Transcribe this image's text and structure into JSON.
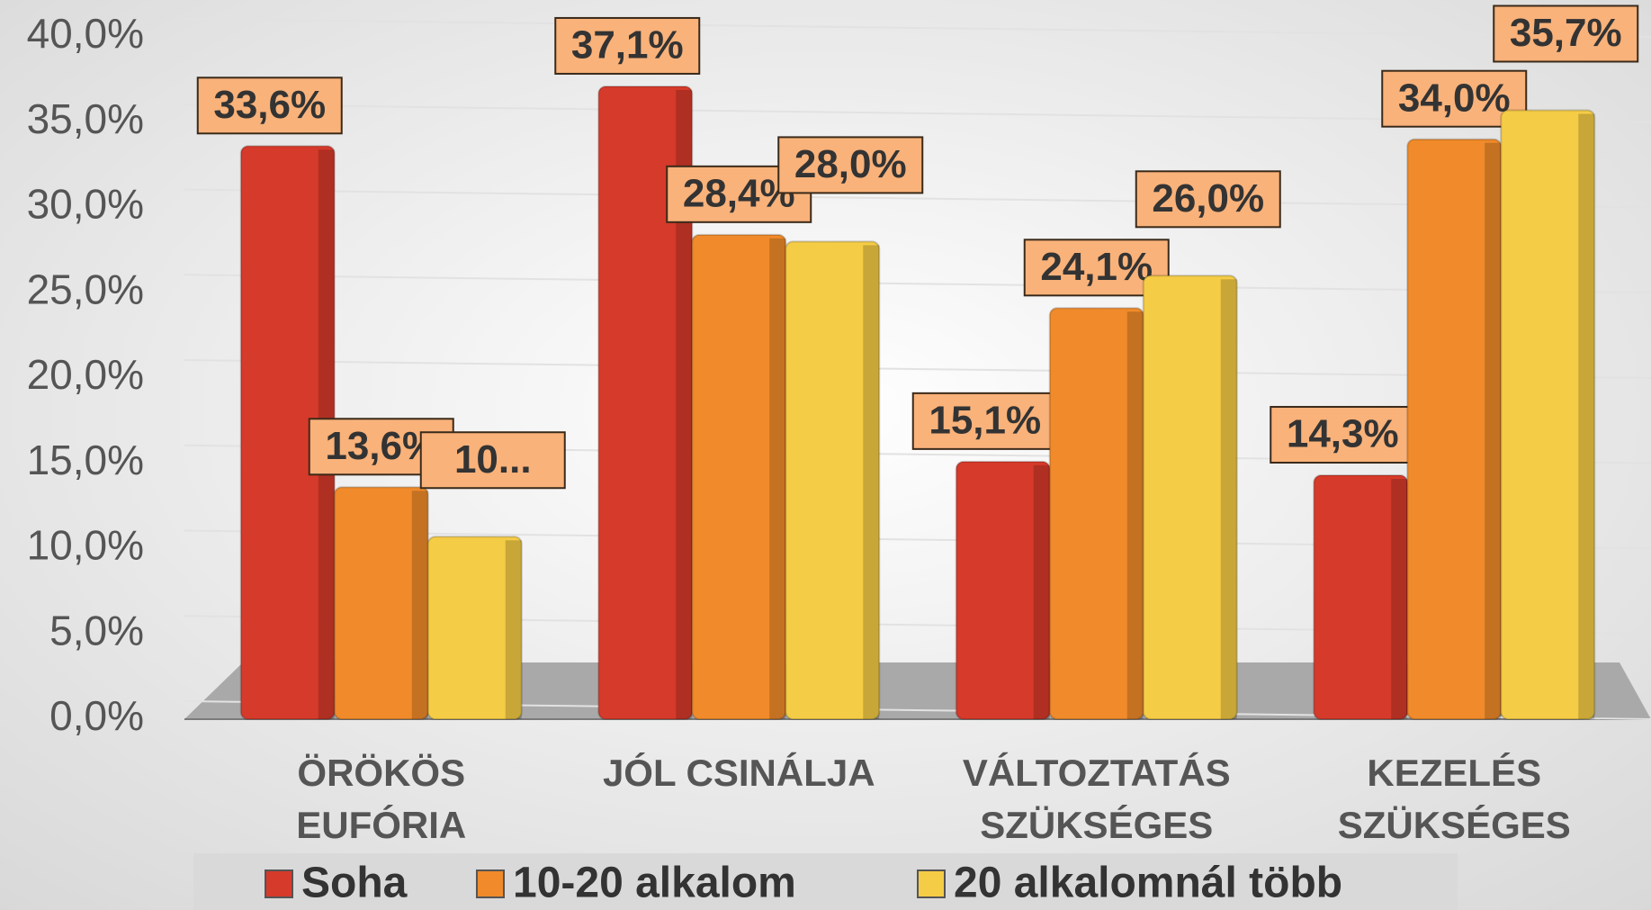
{
  "chart_data": {
    "type": "bar",
    "categories": [
      [
        "ÖRÖKÖS",
        "EUFÓRIA"
      ],
      [
        "JÓL CSINÁLJA"
      ],
      [
        "VÁLTOZTATÁS",
        "SZÜKSÉGES"
      ],
      [
        "KEZELÉS",
        "SZÜKSÉGES"
      ]
    ],
    "series": [
      {
        "name": "Soha",
        "color": "#d63a2a",
        "values": [
          33.6,
          37.1,
          15.1,
          14.3
        ],
        "value_labels": [
          "33,6%",
          "37,1%",
          "15,1%",
          "14,3%"
        ]
      },
      {
        "name": "10-20 alkalom",
        "color": "#f08a2a",
        "values": [
          13.6,
          28.4,
          24.1,
          34.0
        ],
        "value_labels": [
          "13,6%",
          "28,4%",
          "24,1%",
          "34,0%"
        ]
      },
      {
        "name": "20 alkalomnál több",
        "color": "#f5cc45",
        "values": [
          10.7,
          28.0,
          26.0,
          35.7
        ],
        "value_labels": [
          "10...",
          "28,0%",
          "26,0%",
          "35,7%"
        ]
      }
    ],
    "ylim": [
      0,
      40
    ],
    "yticks": [
      {
        "value": 0,
        "label": "0,0%"
      },
      {
        "value": 5,
        "label": "5,0%"
      },
      {
        "value": 10,
        "label": "10,0%"
      },
      {
        "value": 15,
        "label": "15,0%"
      },
      {
        "value": 20,
        "label": "20,0%"
      },
      {
        "value": 25,
        "label": "25,0%"
      },
      {
        "value": 30,
        "label": "30,0%"
      },
      {
        "value": 35,
        "label": "35,0%"
      },
      {
        "value": 40,
        "label": "40,0%"
      }
    ],
    "grid": true,
    "legend": "bottom"
  }
}
